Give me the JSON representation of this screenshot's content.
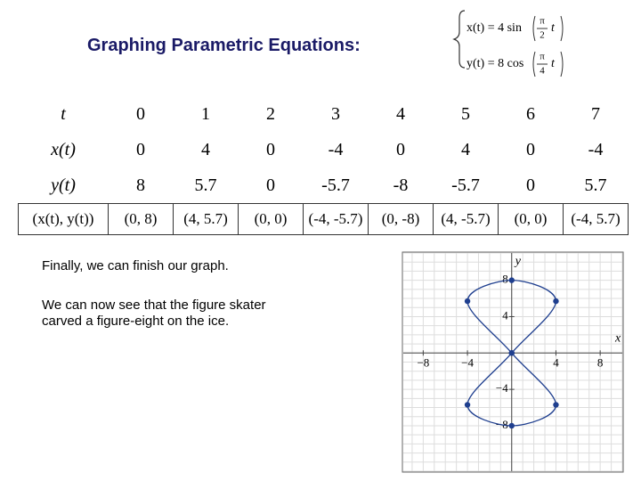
{
  "title": "Graphing Parametric Equations:",
  "equations": [
    {
      "lhs": "x(t) = 4 sin",
      "num": "π",
      "den": "2",
      "var": "t"
    },
    {
      "lhs": "y(t) = 8 cos",
      "num": "π",
      "den": "4",
      "var": "t"
    }
  ],
  "table": {
    "rows": [
      [
        "t",
        "0",
        "1",
        "2",
        "3",
        "4",
        "5",
        "6",
        "7"
      ],
      [
        "x(t)",
        "0",
        "4",
        "0",
        "-4",
        "0",
        "4",
        "0",
        "-4"
      ],
      [
        "y(t)",
        "8",
        "5.7",
        "0",
        "-5.7",
        "-8",
        "-5.7",
        "0",
        "5.7"
      ],
      [
        "(x(t), y(t))",
        "(0, 8)",
        "(4, 5.7)",
        "(0, 0)",
        "(-4, -5.7)",
        "(0, -8)",
        "(4, -5.7)",
        "(0, 0)",
        "(-4, 5.7)"
      ]
    ]
  },
  "paragraphs": [
    "Finally, we can finish our graph.",
    "We can now see that the figure skater carved a figure-eight on the ice."
  ],
  "graph": {
    "x_label": "x",
    "y_label": "y",
    "xlim": [
      -9.8,
      10
    ],
    "ylim": [
      -13,
      11
    ],
    "xticks": [
      {
        "value": -8,
        "label": "−8"
      },
      {
        "value": -4,
        "label": "−4"
      },
      4,
      8
    ],
    "yticks": [
      8,
      4,
      {
        "value": -4,
        "label": "−4"
      },
      {
        "value": -8,
        "label": "−8"
      }
    ],
    "points": {
      "x": [
        0,
        4,
        0,
        -4,
        0,
        4,
        0,
        -4
      ],
      "y": [
        8,
        5.7,
        0,
        -5.7,
        -8,
        -5.7,
        0,
        5.7
      ]
    },
    "color": "#1f3f8f"
  }
}
